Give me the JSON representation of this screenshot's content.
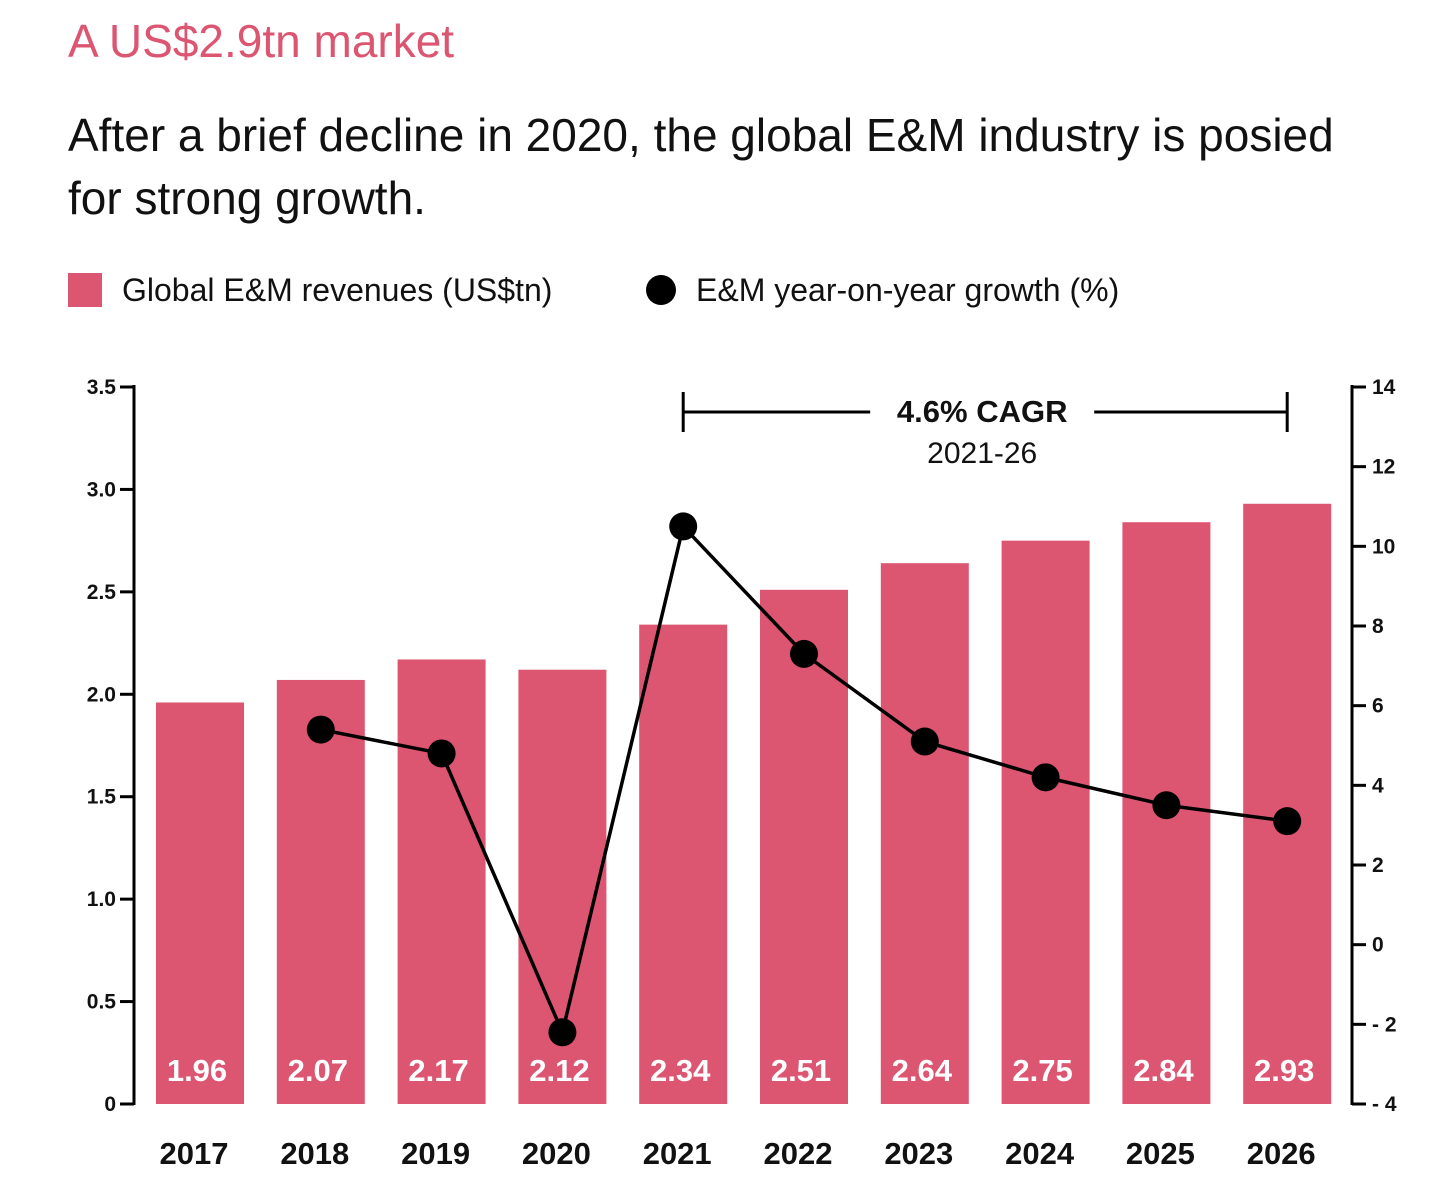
{
  "header": {
    "kicker": "A US$2.9tn market",
    "headline": "After a brief decline in 2020, the global E&M industry is posied for strong growth."
  },
  "colors": {
    "bar": "#dc5571",
    "line": "#000000",
    "kicker": "#dc5571",
    "text": "#111111"
  },
  "legend": [
    {
      "label": "Global E&M revenues (US$tn)",
      "marker": "square",
      "color": "#dc5571"
    },
    {
      "label": "E&M year-on-year growth (%)",
      "marker": "circle",
      "color": "#000000"
    }
  ],
  "chart_data": {
    "type": "bar",
    "categories": [
      "2017",
      "2018",
      "2019",
      "2020",
      "2021",
      "2022",
      "2023",
      "2024",
      "2025",
      "2026"
    ],
    "series": [
      {
        "name": "Global E&M revenues (US$tn)",
        "type": "bar",
        "axis": "left",
        "values": [
          1.96,
          2.07,
          2.17,
          2.12,
          2.34,
          2.51,
          2.64,
          2.75,
          2.84,
          2.93
        ],
        "labels": [
          "1.96",
          "2.07",
          "2.17",
          "2.12",
          "2.34",
          "2.51",
          "2.64",
          "2.75",
          "2.84",
          "2.93"
        ]
      },
      {
        "name": "E&M year-on-year growth (%)",
        "type": "line",
        "axis": "right",
        "values": [
          null,
          5.4,
          4.8,
          -2.2,
          10.5,
          7.3,
          5.1,
          4.2,
          3.5,
          3.1
        ]
      }
    ],
    "y_left": {
      "ylim": [
        0,
        3.5
      ],
      "ticks": [
        0,
        0.5,
        1.0,
        1.5,
        2.0,
        2.5,
        3.0,
        3.5
      ],
      "tick_labels": [
        "0",
        "0.5",
        "1.0",
        "1.5",
        "2.0",
        "2.5",
        "3.0",
        "3.5"
      ]
    },
    "y_right": {
      "ylim": [
        -4,
        14
      ],
      "ticks": [
        -4,
        -2,
        0,
        2,
        4,
        6,
        8,
        10,
        12,
        14
      ],
      "tick_labels": [
        "- 4",
        "- 2",
        "0",
        "2",
        "4",
        "6",
        "8",
        "10",
        "12",
        "14"
      ]
    },
    "annotation": {
      "title": "4.6% CAGR",
      "subtitle": "2021-26",
      "from": "2021",
      "to": "2026"
    },
    "grid": false,
    "legend_position": "top-left"
  }
}
